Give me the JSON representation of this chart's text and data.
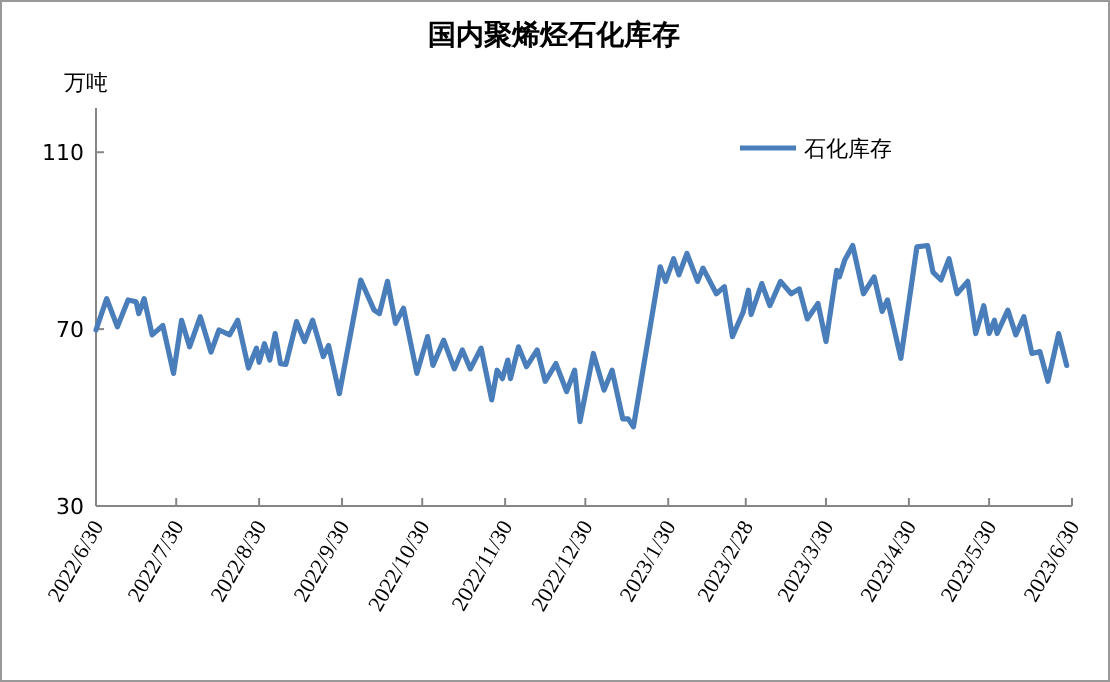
{
  "chart_data": {
    "type": "line",
    "title": "国内聚烯烃石化库存",
    "ylabel": "万吨",
    "xlim": [
      "2022-06-30",
      "2023-06-30"
    ],
    "xticks": [
      {
        "value": "2022-06-30",
        "label": "2022/6/30"
      },
      {
        "value": "2022-07-30",
        "label": "2022/7/30"
      },
      {
        "value": "2022-08-30",
        "label": "2022/8/30"
      },
      {
        "value": "2022-09-30",
        "label": "2022/9/30"
      },
      {
        "value": "2022-10-30",
        "label": "2022/10/30"
      },
      {
        "value": "2022-11-30",
        "label": "2022/11/30"
      },
      {
        "value": "2022-12-30",
        "label": "2022/12/30"
      },
      {
        "value": "2023-01-30",
        "label": "2023/1/30"
      },
      {
        "value": "2023-02-28",
        "label": "2023/2/28"
      },
      {
        "value": "2023-03-30",
        "label": "2023/3/30"
      },
      {
        "value": "2023-04-30",
        "label": "2023/4/30"
      },
      {
        "value": "2023-05-30",
        "label": "2023/5/30"
      },
      {
        "value": "2023-06-30",
        "label": "2023/6/30"
      }
    ],
    "ylim": [
      30,
      120
    ],
    "yticks": [
      30,
      70,
      110
    ],
    "legend": "top right",
    "grid": false,
    "marker": "none",
    "line_style": "solid",
    "series": [
      {
        "name": "石化库存",
        "color": "#4a7ebb",
        "x": [
          "2022-06-30",
          "2022-07-04",
          "2022-07-08",
          "2022-07-12",
          "2022-07-15",
          "2022-07-16",
          "2022-07-18",
          "2022-07-21",
          "2022-07-25",
          "2022-07-29",
          "2022-08-01",
          "2022-08-04",
          "2022-08-08",
          "2022-08-12",
          "2022-08-15",
          "2022-08-19",
          "2022-08-22",
          "2022-08-26",
          "2022-08-29",
          "2022-08-30",
          "2022-09-01",
          "2022-09-03",
          "2022-09-05",
          "2022-09-07",
          "2022-09-09",
          "2022-09-13",
          "2022-09-16",
          "2022-09-19",
          "2022-09-23",
          "2022-09-25",
          "2022-09-29",
          "2022-10-07",
          "2022-10-12",
          "2022-10-14",
          "2022-10-17",
          "2022-10-20",
          "2022-10-23",
          "2022-10-28",
          "2022-11-01",
          "2022-11-03",
          "2022-11-07",
          "2022-11-11",
          "2022-11-14",
          "2022-11-17",
          "2022-11-21",
          "2022-11-25",
          "2022-11-27",
          "2022-11-29",
          "2022-12-01",
          "2022-12-02",
          "2022-12-05",
          "2022-12-08",
          "2022-12-12",
          "2022-12-15",
          "2022-12-19",
          "2022-12-23",
          "2022-12-26",
          "2022-12-28",
          "2023-01-02",
          "2023-01-06",
          "2023-01-09",
          "2023-01-13",
          "2023-01-15",
          "2023-01-17",
          "2023-01-27",
          "2023-01-29",
          "2023-02-01",
          "2023-02-03",
          "2023-02-06",
          "2023-02-10",
          "2023-02-12",
          "2023-02-17",
          "2023-02-20",
          "2023-02-23",
          "2023-02-27",
          "2023-03-01",
          "2023-03-02",
          "2023-03-06",
          "2023-03-09",
          "2023-03-13",
          "2023-03-17",
          "2023-03-20",
          "2023-03-23",
          "2023-03-27",
          "2023-03-30",
          "2023-04-03",
          "2023-04-04",
          "2023-04-06",
          "2023-04-09",
          "2023-04-13",
          "2023-04-17",
          "2023-04-20",
          "2023-04-22",
          "2023-04-27",
          "2023-05-03",
          "2023-05-07",
          "2023-05-09",
          "2023-05-12",
          "2023-05-15",
          "2023-05-18",
          "2023-05-22",
          "2023-05-25",
          "2023-05-28",
          "2023-05-30",
          "2023-06-01",
          "2023-06-02",
          "2023-06-06",
          "2023-06-09",
          "2023-06-12",
          "2023-06-15",
          "2023-06-18",
          "2023-06-21",
          "2023-06-25",
          "2023-06-28"
        ],
        "values": [
          69.8,
          76.9,
          70.5,
          76.6,
          76.2,
          73.5,
          76.9,
          68.7,
          70.8,
          60.0,
          72.0,
          66.0,
          72.8,
          64.8,
          69.8,
          68.7,
          72.0,
          61.2,
          65.7,
          62.5,
          66.7,
          63.0,
          69.0,
          62.2,
          62.0,
          71.7,
          67.2,
          72.0,
          63.8,
          66.3,
          55.4,
          81.1,
          74.3,
          73.5,
          80.8,
          71.3,
          74.7,
          60.0,
          68.3,
          61.8,
          67.5,
          61.0,
          65.3,
          61.0,
          65.7,
          54.0,
          60.7,
          58.8,
          63.0,
          58.8,
          66.0,
          61.5,
          65.3,
          58.2,
          62.2,
          55.9,
          60.7,
          49.1,
          64.5,
          56.2,
          60.7,
          49.7,
          49.7,
          47.9,
          84.1,
          80.8,
          85.9,
          82.3,
          87.1,
          80.8,
          83.8,
          78.0,
          79.6,
          68.3,
          73.8,
          78.8,
          73.3,
          80.3,
          75.3,
          80.8,
          78.0,
          79.1,
          72.3,
          75.8,
          67.2,
          83.3,
          81.8,
          85.6,
          88.9,
          78.0,
          81.8,
          74.0,
          76.6,
          63.4,
          88.6,
          88.9,
          82.9,
          81.1,
          85.9,
          78.0,
          80.8,
          69.0,
          75.3,
          69.0,
          72.0,
          69.0,
          74.3,
          68.7,
          72.8,
          64.5,
          64.9,
          58.2,
          69.0,
          61.8
        ]
      }
    ]
  }
}
